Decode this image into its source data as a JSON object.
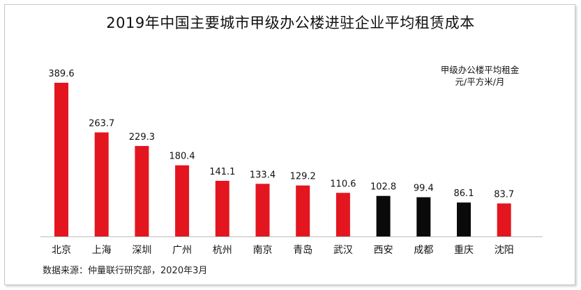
{
  "chart_data": {
    "type": "bar",
    "title": "2019年中国主要城市甲级办公楼进驻企业平均租赁成本",
    "unit_label": "甲级办公楼平均租金",
    "unit": "元/平方米/月",
    "categories": [
      "北京",
      "上海",
      "深圳",
      "广州",
      "杭州",
      "南京",
      "青岛",
      "武汉",
      "西安",
      "成都",
      "重庆",
      "沈阳"
    ],
    "values": [
      389.6,
      263.7,
      229.3,
      180.4,
      141.1,
      133.4,
      129.2,
      110.6,
      102.8,
      99.4,
      86.1,
      83.7
    ],
    "bar_colors": [
      "#e3161f",
      "#e3161f",
      "#e3161f",
      "#e3161f",
      "#e3161f",
      "#e3161f",
      "#e3161f",
      "#e3161f",
      "#0a0a0a",
      "#0a0a0a",
      "#0a0a0a",
      "#e3161f"
    ],
    "ylim": [
      0,
      400
    ],
    "grid": false,
    "legend": false
  },
  "source": "数据来源：仲量联行研究部，2020年3月"
}
